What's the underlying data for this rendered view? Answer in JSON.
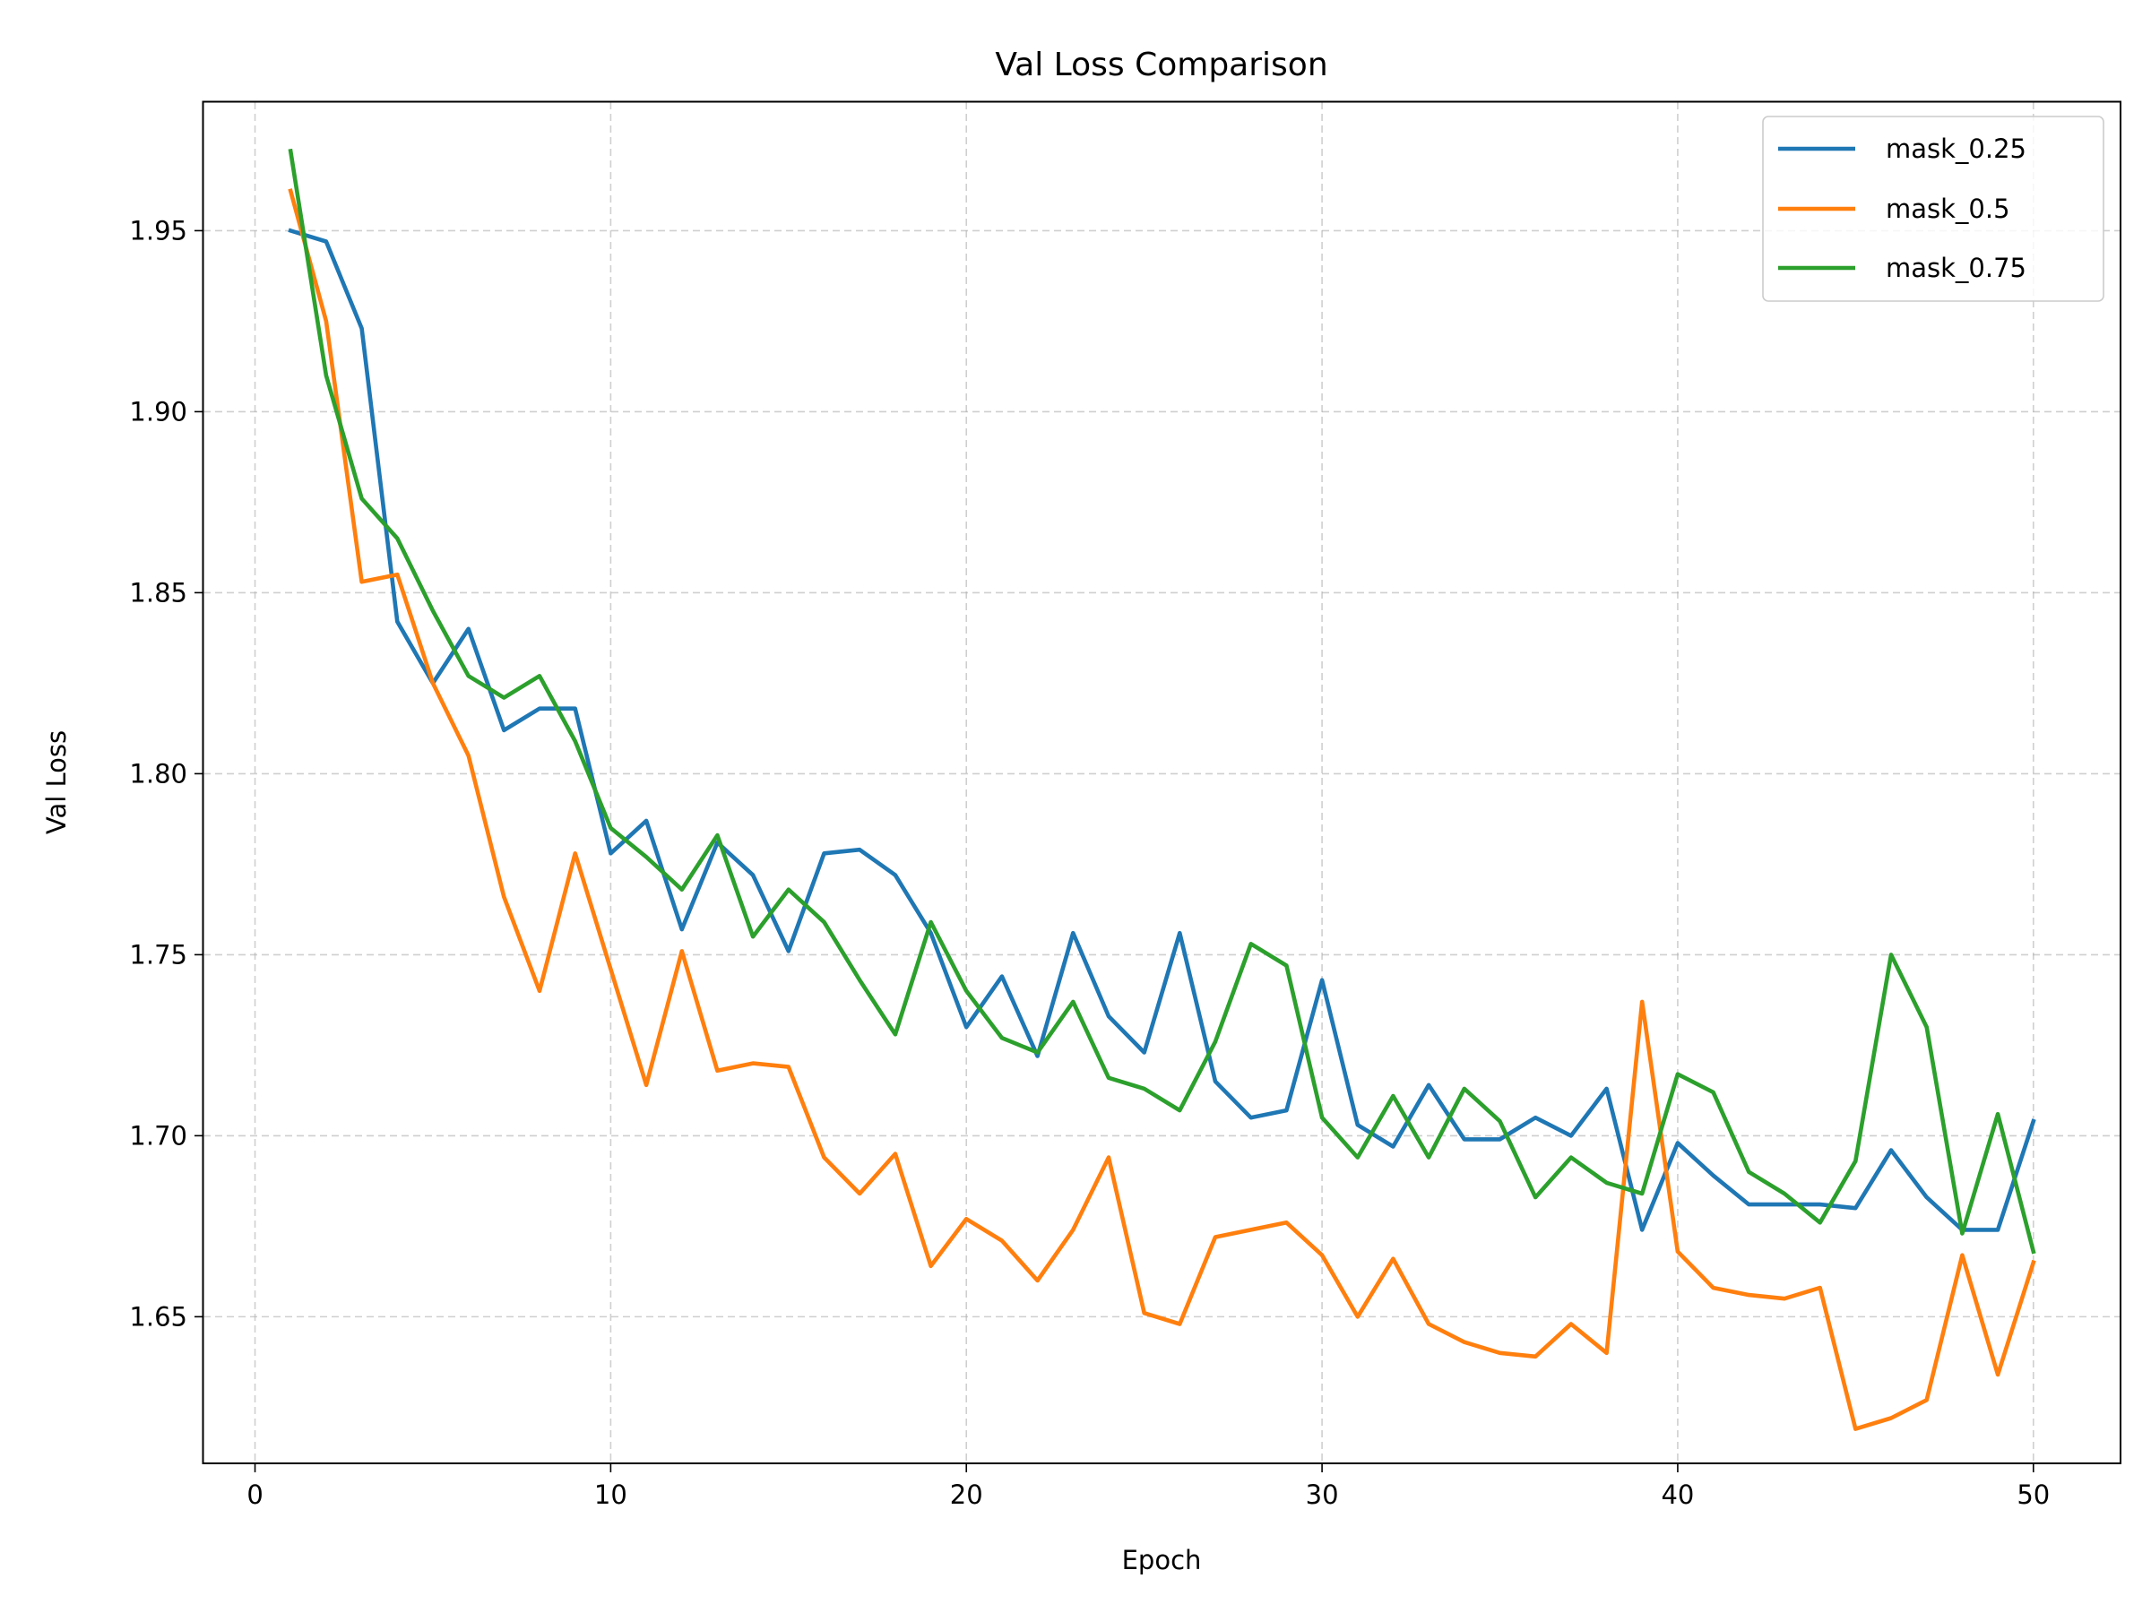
{
  "chart_data": {
    "type": "line",
    "title": "Val Loss Comparison",
    "xlabel": "Epoch",
    "ylabel": "Val Loss",
    "xlim": [
      -1.45,
      52.45
    ],
    "ylim": [
      1.6095,
      1.9855
    ],
    "xticks": [
      0,
      10,
      20,
      30,
      40,
      50
    ],
    "yticks": [
      1.65,
      1.7,
      1.75,
      1.8,
      1.85,
      1.9,
      1.95
    ],
    "grid": true,
    "legend_position": "top-right",
    "x": [
      1,
      2,
      3,
      4,
      5,
      6,
      7,
      8,
      9,
      10,
      11,
      12,
      13,
      14,
      15,
      16,
      17,
      18,
      19,
      20,
      21,
      22,
      23,
      24,
      25,
      26,
      27,
      28,
      29,
      30,
      31,
      32,
      33,
      34,
      35,
      36,
      37,
      38,
      39,
      40,
      41,
      42,
      43,
      44,
      45,
      46,
      47,
      48,
      49,
      50
    ],
    "series": [
      {
        "name": "mask_0.25",
        "color": "#1f77b4",
        "values": [
          1.95,
          1.947,
          1.923,
          1.842,
          1.825,
          1.84,
          1.812,
          1.818,
          1.818,
          1.778,
          1.787,
          1.757,
          1.781,
          1.772,
          1.751,
          1.778,
          1.779,
          1.772,
          1.756,
          1.73,
          1.744,
          1.722,
          1.756,
          1.733,
          1.723,
          1.756,
          1.715,
          1.705,
          1.707,
          1.743,
          1.703,
          1.697,
          1.714,
          1.699,
          1.699,
          1.705,
          1.7,
          1.713,
          1.674,
          1.698,
          1.689,
          1.681,
          1.681,
          1.681,
          1.68,
          1.696,
          1.683,
          1.674,
          1.674,
          1.704
        ]
      },
      {
        "name": "mask_0.5",
        "color": "#ff7f0e",
        "values": [
          1.961,
          1.925,
          1.853,
          1.855,
          1.825,
          1.805,
          1.766,
          1.74,
          1.778,
          1.746,
          1.714,
          1.751,
          1.718,
          1.72,
          1.719,
          1.694,
          1.684,
          1.695,
          1.664,
          1.677,
          1.671,
          1.66,
          1.674,
          1.694,
          1.651,
          1.648,
          1.672,
          1.674,
          1.676,
          1.667,
          1.65,
          1.666,
          1.648,
          1.643,
          1.64,
          1.639,
          1.648,
          1.64,
          1.737,
          1.668,
          1.658,
          1.656,
          1.655,
          1.658,
          1.619,
          1.622,
          1.627,
          1.667,
          1.634,
          1.665
        ]
      },
      {
        "name": "mask_0.75",
        "color": "#2ca02c",
        "values": [
          1.972,
          1.91,
          1.876,
          1.865,
          1.845,
          1.827,
          1.821,
          1.827,
          1.809,
          1.785,
          1.777,
          1.768,
          1.783,
          1.755,
          1.768,
          1.759,
          1.743,
          1.728,
          1.759,
          1.74,
          1.727,
          1.723,
          1.737,
          1.716,
          1.713,
          1.707,
          1.726,
          1.753,
          1.747,
          1.705,
          1.694,
          1.711,
          1.694,
          1.713,
          1.704,
          1.683,
          1.694,
          1.687,
          1.684,
          1.717,
          1.712,
          1.69,
          1.684,
          1.676,
          1.693,
          1.75,
          1.73,
          1.673,
          1.706,
          1.668
        ]
      }
    ]
  }
}
